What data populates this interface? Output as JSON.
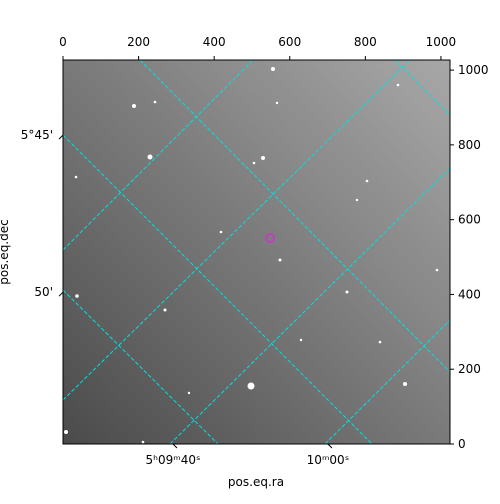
{
  "chart_data": {
    "type": "image",
    "xlabel": "pos.eq.ra",
    "ylabel": "pos.eq.dec",
    "xlim": [
      0,
      1024
    ],
    "ylim": [
      0,
      1027
    ],
    "xticks": [
      0,
      200,
      400,
      600,
      800,
      1000
    ],
    "yticks": [
      0,
      200,
      400,
      600,
      800,
      1000
    ],
    "ra_ticks": [
      {
        "value": 291,
        "label": "5ʰ09ᵐ40ˢ"
      },
      {
        "value": 701,
        "label": "10ᵐ00ˢ"
      }
    ],
    "dec_ticks": [
      {
        "value": 826,
        "label": "5°45'"
      },
      {
        "value": 406,
        "label": "50'"
      }
    ],
    "grid_color": "#00e0e0",
    "markers": [
      {
        "x": 548,
        "y": 551,
        "color": "#c040c0"
      }
    ]
  }
}
